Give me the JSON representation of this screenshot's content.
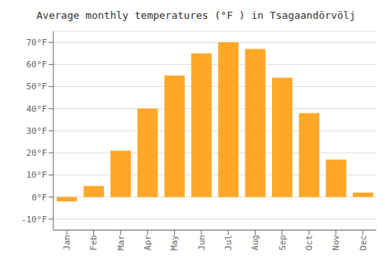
{
  "chart_data": {
    "type": "bar",
    "title": "Average monthly temperatures (°F ) in Tsagaandörvölj",
    "categories": [
      "Jan",
      "Feb",
      "Mar",
      "Apr",
      "May",
      "Jun",
      "Jul",
      "Aug",
      "Sep",
      "Oct",
      "Nov",
      "Dec"
    ],
    "values": [
      -2,
      5,
      21,
      40,
      55,
      65,
      70,
      67,
      54,
      38,
      17,
      2
    ],
    "color": "#FFA726",
    "ylim": [
      -15,
      75
    ],
    "yticks": [
      {
        "value": -10,
        "label": "-10°F"
      },
      {
        "value": 0,
        "label": "0°F"
      },
      {
        "value": 10,
        "label": "10°F"
      },
      {
        "value": 20,
        "label": "20°F"
      },
      {
        "value": 30,
        "label": "30°F"
      },
      {
        "value": 40,
        "label": "40°F"
      },
      {
        "value": 50,
        "label": "50°F"
      },
      {
        "value": 60,
        "label": "60°F"
      },
      {
        "value": 70,
        "label": "70°F"
      }
    ],
    "grid": true
  }
}
